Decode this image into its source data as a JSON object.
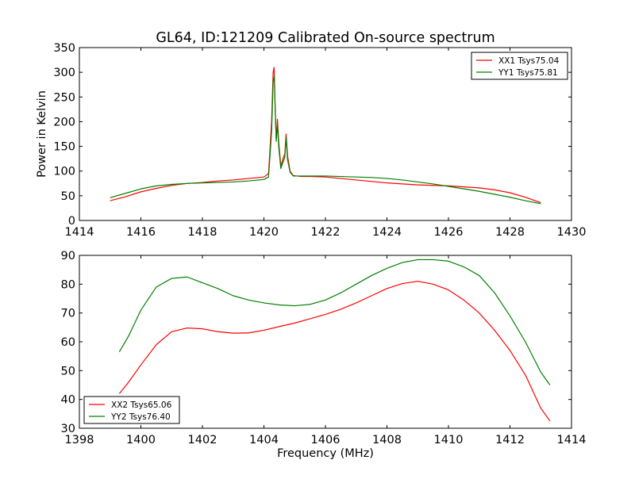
{
  "figure": {
    "title": "GL64, ID:121209 Calibrated On-source spectrum",
    "xlabel": "Frequency (MHz)",
    "ylabel": "Power in Kelvin"
  },
  "chart_data": [
    {
      "type": "line",
      "title": "GL64, ID:121209 Calibrated On-source spectrum",
      "xlabel": "",
      "ylabel": "Power in Kelvin",
      "xlim": [
        1414,
        1430
      ],
      "ylim": [
        0,
        350
      ],
      "xticks": [
        1414,
        1416,
        1418,
        1420,
        1422,
        1424,
        1426,
        1428,
        1430
      ],
      "yticks": [
        0,
        50,
        100,
        150,
        200,
        250,
        300,
        350
      ],
      "legend_position": "top-right",
      "grid": false,
      "series": [
        {
          "name": "XX1 Tsys75.04",
          "color": "#ff0000",
          "points": [
            [
              1415.0,
              40
            ],
            [
              1415.5,
              48
            ],
            [
              1416.0,
              58
            ],
            [
              1416.5,
              65
            ],
            [
              1417.0,
              71
            ],
            [
              1417.5,
              75
            ],
            [
              1418.0,
              77
            ],
            [
              1418.5,
              80
            ],
            [
              1419.0,
              82
            ],
            [
              1419.5,
              85
            ],
            [
              1420.0,
              88
            ],
            [
              1420.15,
              95
            ],
            [
              1420.25,
              200
            ],
            [
              1420.3,
              300
            ],
            [
              1420.33,
              310
            ],
            [
              1420.36,
              240
            ],
            [
              1420.4,
              165
            ],
            [
              1420.44,
              205
            ],
            [
              1420.48,
              160
            ],
            [
              1420.55,
              110
            ],
            [
              1420.62,
              125
            ],
            [
              1420.68,
              135
            ],
            [
              1420.72,
              175
            ],
            [
              1420.77,
              130
            ],
            [
              1420.85,
              100
            ],
            [
              1420.95,
              91
            ],
            [
              1421.2,
              89
            ],
            [
              1421.5,
              89
            ],
            [
              1422.0,
              88
            ],
            [
              1422.5,
              85
            ],
            [
              1423.0,
              82
            ],
            [
              1423.5,
              79
            ],
            [
              1424.0,
              76
            ],
            [
              1424.5,
              74
            ],
            [
              1425.0,
              72
            ],
            [
              1425.5,
              71
            ],
            [
              1426.0,
              70
            ],
            [
              1426.5,
              68
            ],
            [
              1427.0,
              66
            ],
            [
              1427.5,
              62
            ],
            [
              1428.0,
              56
            ],
            [
              1428.5,
              47
            ],
            [
              1429.0,
              36
            ]
          ]
        },
        {
          "name": "YY1 Tsys75.81",
          "color": "#008000",
          "points": [
            [
              1415.0,
              46
            ],
            [
              1415.5,
              55
            ],
            [
              1416.0,
              64
            ],
            [
              1416.5,
              70
            ],
            [
              1417.0,
              73
            ],
            [
              1417.5,
              75
            ],
            [
              1418.0,
              76
            ],
            [
              1418.5,
              77
            ],
            [
              1419.0,
              78
            ],
            [
              1419.5,
              80
            ],
            [
              1420.0,
              83
            ],
            [
              1420.15,
              88
            ],
            [
              1420.25,
              180
            ],
            [
              1420.3,
              280
            ],
            [
              1420.34,
              292
            ],
            [
              1420.37,
              220
            ],
            [
              1420.4,
              160
            ],
            [
              1420.44,
              195
            ],
            [
              1420.48,
              150
            ],
            [
              1420.55,
              105
            ],
            [
              1420.62,
              118
            ],
            [
              1420.68,
              128
            ],
            [
              1420.72,
              168
            ],
            [
              1420.77,
              122
            ],
            [
              1420.85,
              98
            ],
            [
              1420.95,
              90
            ],
            [
              1421.2,
              90
            ],
            [
              1421.5,
              90
            ],
            [
              1422.0,
              90
            ],
            [
              1422.5,
              89
            ],
            [
              1423.0,
              88
            ],
            [
              1423.5,
              87
            ],
            [
              1424.0,
              85
            ],
            [
              1424.5,
              82
            ],
            [
              1425.0,
              78
            ],
            [
              1425.5,
              74
            ],
            [
              1426.0,
              69
            ],
            [
              1426.5,
              64
            ],
            [
              1427.0,
              59
            ],
            [
              1427.5,
              53
            ],
            [
              1428.0,
              47
            ],
            [
              1428.5,
              40
            ],
            [
              1429.0,
              34
            ]
          ]
        }
      ]
    },
    {
      "type": "line",
      "title": "",
      "xlabel": "Frequency (MHz)",
      "ylabel": "",
      "xlim": [
        1398,
        1414
      ],
      "ylim": [
        30,
        90
      ],
      "xticks": [
        1398,
        1400,
        1402,
        1404,
        1406,
        1408,
        1410,
        1412,
        1414
      ],
      "yticks": [
        30,
        40,
        50,
        60,
        70,
        80,
        90
      ],
      "legend_position": "bottom-left",
      "grid": false,
      "series": [
        {
          "name": "XX2 Tsys65.06",
          "color": "#ff0000",
          "points": [
            [
              1399.3,
              42
            ],
            [
              1399.6,
              46
            ],
            [
              1400.0,
              52
            ],
            [
              1400.5,
              59
            ],
            [
              1401.0,
              63.5
            ],
            [
              1401.5,
              64.8
            ],
            [
              1402.0,
              64.5
            ],
            [
              1402.5,
              63.5
            ],
            [
              1403.0,
              63
            ],
            [
              1403.5,
              63.1
            ],
            [
              1404.0,
              64
            ],
            [
              1404.5,
              65.3
            ],
            [
              1405.0,
              66.5
            ],
            [
              1405.5,
              68
            ],
            [
              1406.0,
              69.5
            ],
            [
              1406.5,
              71.3
            ],
            [
              1407.0,
              73.5
            ],
            [
              1407.5,
              76
            ],
            [
              1408.0,
              78.5
            ],
            [
              1408.5,
              80.2
            ],
            [
              1409.0,
              81
            ],
            [
              1409.5,
              80
            ],
            [
              1410.0,
              78
            ],
            [
              1410.5,
              74.5
            ],
            [
              1411.0,
              70
            ],
            [
              1411.5,
              64
            ],
            [
              1412.0,
              57
            ],
            [
              1412.5,
              48.5
            ],
            [
              1413.0,
              37
            ],
            [
              1413.3,
              32.5
            ]
          ]
        },
        {
          "name": "YY2 Tsys76.40",
          "color": "#008000",
          "points": [
            [
              1399.3,
              56.5
            ],
            [
              1399.6,
              62
            ],
            [
              1400.0,
              71
            ],
            [
              1400.5,
              79
            ],
            [
              1401.0,
              82
            ],
            [
              1401.5,
              82.5
            ],
            [
              1402.0,
              80.5
            ],
            [
              1402.5,
              78.5
            ],
            [
              1403.0,
              76
            ],
            [
              1403.5,
              74.5
            ],
            [
              1404.0,
              73.5
            ],
            [
              1404.5,
              72.8
            ],
            [
              1405.0,
              72.5
            ],
            [
              1405.5,
              73
            ],
            [
              1406.0,
              74.5
            ],
            [
              1406.5,
              77
            ],
            [
              1407.0,
              80
            ],
            [
              1407.5,
              83
            ],
            [
              1408.0,
              85.5
            ],
            [
              1408.5,
              87.5
            ],
            [
              1409.0,
              88.5
            ],
            [
              1409.5,
              88.5
            ],
            [
              1410.0,
              88
            ],
            [
              1410.5,
              86
            ],
            [
              1411.0,
              83
            ],
            [
              1411.5,
              77
            ],
            [
              1412.0,
              69
            ],
            [
              1412.5,
              60
            ],
            [
              1413.0,
              49.5
            ],
            [
              1413.3,
              45
            ]
          ]
        }
      ]
    }
  ]
}
